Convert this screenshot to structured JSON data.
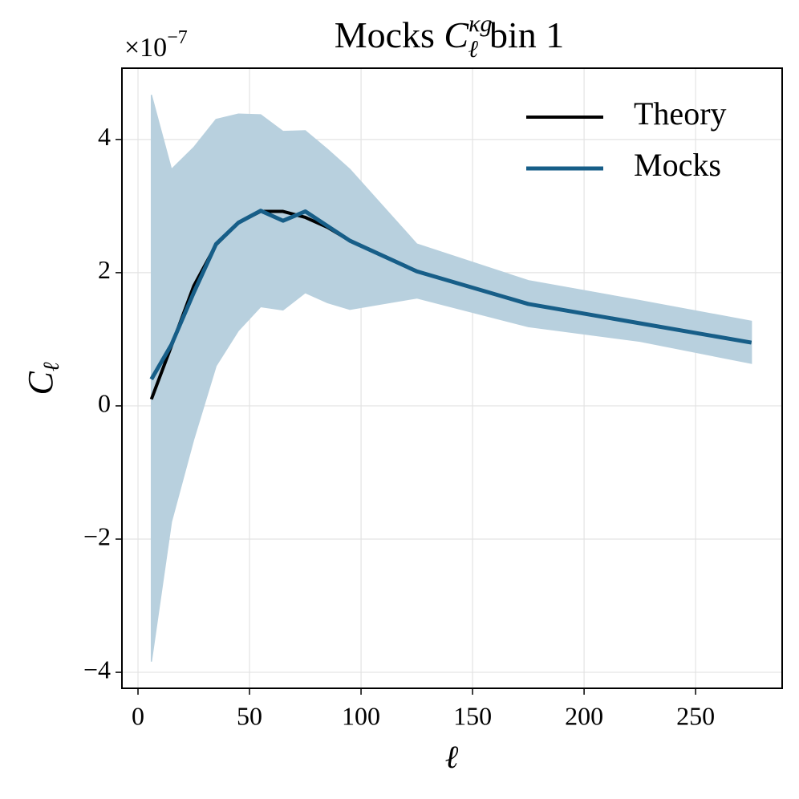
{
  "chart_data": {
    "type": "line",
    "title": {
      "prefix": "Mocks",
      "symbol": "C",
      "subscript": "ℓ",
      "superscript": "κg",
      "suffix": "bin 1"
    },
    "xlabel": "ℓ",
    "ylabel": {
      "symbol": "C",
      "subscript": "ℓ"
    },
    "y_offset": {
      "base": "×10",
      "exponent": "−7"
    },
    "x": [
      6,
      15,
      25,
      35,
      45,
      55,
      65,
      75,
      85,
      95,
      125,
      175,
      225,
      275
    ],
    "series": [
      {
        "name": "Theory",
        "color": "#000000",
        "values": [
          0.1,
          0.9,
          1.8,
          2.42,
          2.75,
          2.92,
          2.92,
          2.83,
          2.68,
          2.48,
          2.02,
          1.53,
          1.24,
          0.95
        ]
      },
      {
        "name": "Mocks",
        "color": "#175e88",
        "band_color": "#b8d0de",
        "values": [
          0.4,
          0.92,
          1.7,
          2.43,
          2.75,
          2.93,
          2.78,
          2.92,
          2.7,
          2.48,
          2.02,
          1.53,
          1.24,
          0.95
        ],
        "upper": [
          4.67,
          3.55,
          3.88,
          4.3,
          4.38,
          4.37,
          4.12,
          4.13,
          3.85,
          3.55,
          2.43,
          1.88,
          1.58,
          1.27
        ],
        "lower": [
          -3.84,
          -1.74,
          -0.5,
          0.6,
          1.13,
          1.49,
          1.44,
          1.7,
          1.55,
          1.45,
          1.62,
          1.19,
          0.97,
          0.64
        ]
      }
    ],
    "xlim": [
      -7.2,
      288.8
    ],
    "ylim": [
      -4.24,
      5.07
    ],
    "xticks": [
      0,
      50,
      100,
      150,
      200,
      250
    ],
    "yticks": [
      {
        "value": -4,
        "label": "−4"
      },
      {
        "value": -2,
        "label": "−2"
      },
      0,
      2,
      4
    ],
    "grid": true,
    "legend": "upper right"
  }
}
